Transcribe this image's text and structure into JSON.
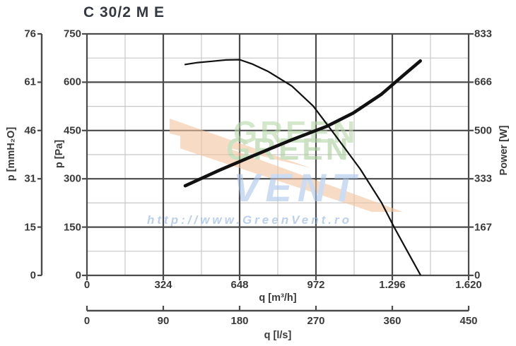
{
  "page": {
    "title": "C 30/2 M E"
  },
  "colors": {
    "text": "#3a3a3a",
    "title": "#343941",
    "axis": "#4a4a4a",
    "major_grid": "#4a4a4a",
    "minor_grid": "#c8c8c8",
    "curve": "#111111"
  },
  "watermark": {
    "line1": "GREEN",
    "line2": "VENT",
    "url": "http://www.GreenVent.ro",
    "colors": {
      "green1": "#b7d8a8",
      "green2": "#aacf9a",
      "blue": "#a9c6ec",
      "orange": "#f4c49e",
      "url": "#8fb2e4"
    }
  },
  "chart_data": {
    "type": "line",
    "title": "C 30/2 M E",
    "axes": {
      "x_m3h": {
        "label": "q [m³/h]",
        "min": 0,
        "max": 1620,
        "ticks": [
          "0",
          "324",
          "648",
          "972",
          "1.296",
          "1.620"
        ]
      },
      "x_ls": {
        "label": "q [l/s]",
        "min": 0,
        "max": 450,
        "ticks": [
          "0",
          "90",
          "180",
          "270",
          "360",
          "450"
        ]
      },
      "y_pa": {
        "label": "p [Pa]",
        "min": 0,
        "max": 750,
        "ticks_top_to_bottom": [
          "750",
          "600",
          "450",
          "300",
          "150",
          "0"
        ]
      },
      "y_mmh2o": {
        "label": "p [mmH₂O]",
        "min": 0,
        "max": 76,
        "ticks_top_to_bottom": [
          "76",
          "61",
          "46",
          "31",
          "15",
          "0"
        ]
      },
      "y_power": {
        "label": "Power [W]",
        "min": 0,
        "max": 833,
        "ticks_top_to_bottom": [
          "833",
          "666",
          "500",
          "333",
          "167",
          "0"
        ]
      }
    },
    "grid": {
      "major_x_divisions": 5,
      "major_y_divisions": 5,
      "minor_between_majors": true,
      "legend": "none"
    },
    "series": [
      {
        "name": "pressure-curve",
        "axis": "y_pa",
        "units": "q in m³/h vs p in Pa",
        "style": "thin",
        "points": [
          [
            417,
            655
          ],
          [
            470,
            661
          ],
          [
            530,
            665
          ],
          [
            590,
            669
          ],
          [
            648,
            670
          ],
          [
            700,
            657
          ],
          [
            770,
            633
          ],
          [
            870,
            588
          ],
          [
            960,
            526
          ],
          [
            1050,
            439
          ],
          [
            1160,
            330
          ],
          [
            1250,
            226
          ],
          [
            1305,
            148
          ],
          [
            1360,
            75
          ],
          [
            1415,
            2
          ]
        ]
      },
      {
        "name": "power-curve",
        "axis": "y_power",
        "units": "q in m³/h vs Power in W",
        "style": "thick",
        "points": [
          [
            417,
            309
          ],
          [
            560,
            362
          ],
          [
            710,
            414
          ],
          [
            870,
            468
          ],
          [
            1020,
            515
          ],
          [
            1130,
            560
          ],
          [
            1250,
            625
          ],
          [
            1340,
            688
          ],
          [
            1415,
            740
          ]
        ]
      }
    ]
  }
}
